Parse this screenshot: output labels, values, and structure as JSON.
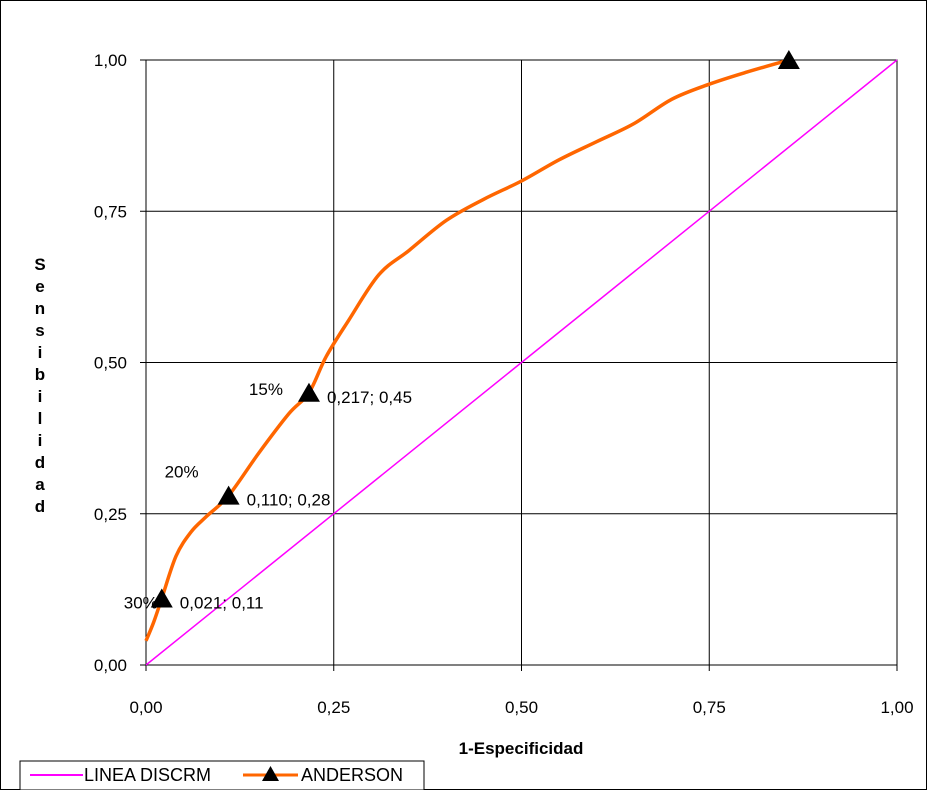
{
  "chart_data": {
    "type": "line",
    "title": "",
    "xlabel": "1-Especificidad",
    "ylabel": "Sensibilidad",
    "xlim": [
      0,
      1
    ],
    "ylim": [
      0,
      1
    ],
    "x_ticks": [
      0,
      0.25,
      0.5,
      0.75,
      1
    ],
    "y_ticks": [
      0,
      0.25,
      0.5,
      0.75,
      1
    ],
    "x_tick_labels": [
      "0,00",
      "0,25",
      "0,50",
      "0,75",
      "1,00"
    ],
    "y_tick_labels": [
      "0,00",
      "0,25",
      "0,50",
      "0,75",
      "1,00"
    ],
    "grid": true,
    "legend_position": "bottom-left",
    "series": [
      {
        "name": "LINEA DISCRM",
        "color": "#ff00ff",
        "style": "line",
        "points": [
          [
            0,
            0
          ],
          [
            1,
            1
          ]
        ]
      },
      {
        "name": "ANDERSON",
        "color": "#ff6600",
        "marker_color": "#000000",
        "marker": "triangle",
        "style": "smooth-line",
        "points": [
          [
            0.0,
            0.04
          ],
          [
            0.01,
            0.07
          ],
          [
            0.021,
            0.11
          ],
          [
            0.04,
            0.18
          ],
          [
            0.06,
            0.22
          ],
          [
            0.08,
            0.245
          ],
          [
            0.11,
            0.28
          ],
          [
            0.15,
            0.35
          ],
          [
            0.19,
            0.415
          ],
          [
            0.217,
            0.45
          ],
          [
            0.24,
            0.51
          ],
          [
            0.27,
            0.57
          ],
          [
            0.31,
            0.645
          ],
          [
            0.35,
            0.685
          ],
          [
            0.4,
            0.735
          ],
          [
            0.45,
            0.77
          ],
          [
            0.5,
            0.8
          ],
          [
            0.55,
            0.835
          ],
          [
            0.6,
            0.865
          ],
          [
            0.65,
            0.895
          ],
          [
            0.7,
            0.935
          ],
          [
            0.75,
            0.96
          ],
          [
            0.8,
            0.98
          ],
          [
            0.856,
            1.0
          ]
        ],
        "markers": [
          [
            0.021,
            0.11
          ],
          [
            0.11,
            0.28
          ],
          [
            0.217,
            0.45
          ],
          [
            0.856,
            1.0
          ]
        ]
      }
    ],
    "annotations": [
      {
        "text": "0,021; 0,11",
        "x": 0.021,
        "y": 0.11
      },
      {
        "text": "0,110; 0,28",
        "x": 0.11,
        "y": 0.28
      },
      {
        "text": "0,217; 0,45",
        "x": 0.217,
        "y": 0.45
      },
      {
        "text": "30%",
        "x": 0.021,
        "y": 0.11
      },
      {
        "text": "20%",
        "x": 0.11,
        "y": 0.28
      },
      {
        "text": "15%",
        "x": 0.217,
        "y": 0.45
      }
    ]
  }
}
